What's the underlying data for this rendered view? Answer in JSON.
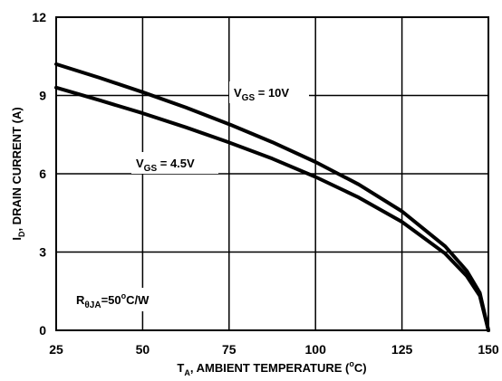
{
  "chart_data": {
    "type": "line",
    "title": "",
    "xlabel": {
      "main": "T",
      "sub": "A",
      "rest": ", AMBIENT TEMPERATURE (",
      "sup": "o",
      "end": "C)"
    },
    "ylabel": {
      "main": "I",
      "sub": "D",
      "rest": ", DRAIN CURRENT (A)"
    },
    "xlim": [
      25,
      150
    ],
    "ylim": [
      0,
      12
    ],
    "x_ticks": [
      25,
      50,
      75,
      100,
      125,
      150
    ],
    "y_ticks": [
      0,
      3,
      6,
      9,
      12
    ],
    "grid": true,
    "series": [
      {
        "label_main": "V",
        "label_sub": "GS",
        "label_rest": " = 10V",
        "x": [
          25,
          37.5,
          50,
          62.5,
          75,
          87.5,
          100,
          112.5,
          125,
          137.5,
          143.75,
          147.5,
          150
        ],
        "y": [
          10.2,
          9.68,
          9.13,
          8.54,
          7.9,
          7.21,
          6.45,
          5.59,
          4.56,
          3.22,
          2.28,
          1.44,
          0
        ]
      },
      {
        "label_main": "V",
        "label_sub": "GS",
        "label_rest": " = 4.5V",
        "x": [
          25,
          37.5,
          50,
          62.5,
          75,
          87.5,
          100,
          112.5,
          125,
          137.5,
          143.75,
          147.5,
          150
        ],
        "y": [
          9.3,
          8.82,
          8.32,
          7.78,
          7.2,
          6.58,
          5.88,
          5.09,
          4.16,
          2.94,
          2.08,
          1.32,
          0
        ]
      }
    ],
    "annotation": {
      "main": "R",
      "sub": "θJA",
      "rest": "=50",
      "sup": "o",
      "end": "C/W"
    }
  }
}
